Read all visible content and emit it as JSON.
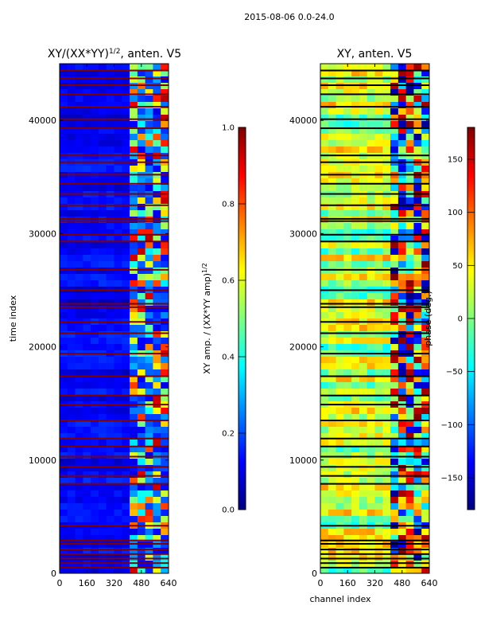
{
  "suptitle": "2015-08-06 0.0-24.0",
  "colormap": [
    "#00007f",
    "#0000ff",
    "#007fff",
    "#00ffff",
    "#7fff7f",
    "#ffff00",
    "#ff7f00",
    "#ff0000",
    "#7f0000"
  ],
  "chart_data": [
    {
      "type": "heatmap",
      "title_main": "XY/(XX*YY)",
      "title_exp": "1/2",
      "title_rest": ", anten. V5",
      "xlabel": "",
      "ylabel": "time index",
      "xlim": [
        0,
        640
      ],
      "ylim": [
        0,
        45000
      ],
      "xticks": [
        0,
        160,
        320,
        480,
        640
      ],
      "yticks": [
        0,
        10000,
        20000,
        30000,
        40000
      ],
      "colorbar": {
        "label_main": "XY amp. / (XX*YY amp)",
        "label_exp": "1/2",
        "range": [
          0.0,
          1.0
        ],
        "ticks": [
          "0.0",
          "0.2",
          "0.4",
          "0.6",
          "0.8",
          "1.0"
        ],
        "tick_values": [
          0.0,
          0.2,
          0.4,
          0.6,
          0.8,
          1.0
        ]
      },
      "noisy_channel_start": 400,
      "flagged_time_rows": [
        500,
        900,
        1300,
        1700,
        2100,
        2600,
        2900,
        4200,
        7900,
        8600,
        9400,
        10300,
        11200,
        11900,
        13500,
        14900,
        15700,
        17400,
        19400,
        21200,
        22200,
        23500,
        23800,
        25000,
        26800,
        29300,
        29900,
        31100,
        31300,
        32500,
        33500,
        34400,
        35200,
        36300,
        36900,
        39300,
        40100,
        41200,
        42300,
        43100,
        43700,
        44400
      ]
    },
    {
      "type": "heatmap",
      "title_main": "XY, anten. V5",
      "xlabel": "channel index",
      "ylabel": "",
      "xlim": [
        0,
        640
      ],
      "ylim": [
        0,
        45000
      ],
      "xticks": [
        0,
        160,
        320,
        480,
        640
      ],
      "yticks": [
        0,
        10000,
        20000,
        30000,
        40000
      ],
      "colorbar": {
        "label_main": "phase (deg.)",
        "range": [
          -180,
          180
        ],
        "ticks": [
          "−150",
          "−100",
          "−50",
          "0",
          "50",
          "100",
          "150"
        ],
        "tick_values": [
          -150,
          -100,
          -50,
          0,
          50,
          100,
          150
        ]
      },
      "noisy_channel_start": 400,
      "flagged_time_rows": [
        500,
        900,
        1300,
        1700,
        2100,
        2600,
        2900,
        4200,
        7900,
        8600,
        9400,
        10300,
        11200,
        11900,
        13500,
        14900,
        15700,
        17400,
        19400,
        21200,
        22200,
        23500,
        23800,
        25000,
        26800,
        29300,
        29900,
        31100,
        31300,
        32500,
        33500,
        34400,
        35200,
        36300,
        36900,
        39300,
        40100,
        41200,
        42300,
        43100,
        43700,
        44400
      ]
    }
  ]
}
